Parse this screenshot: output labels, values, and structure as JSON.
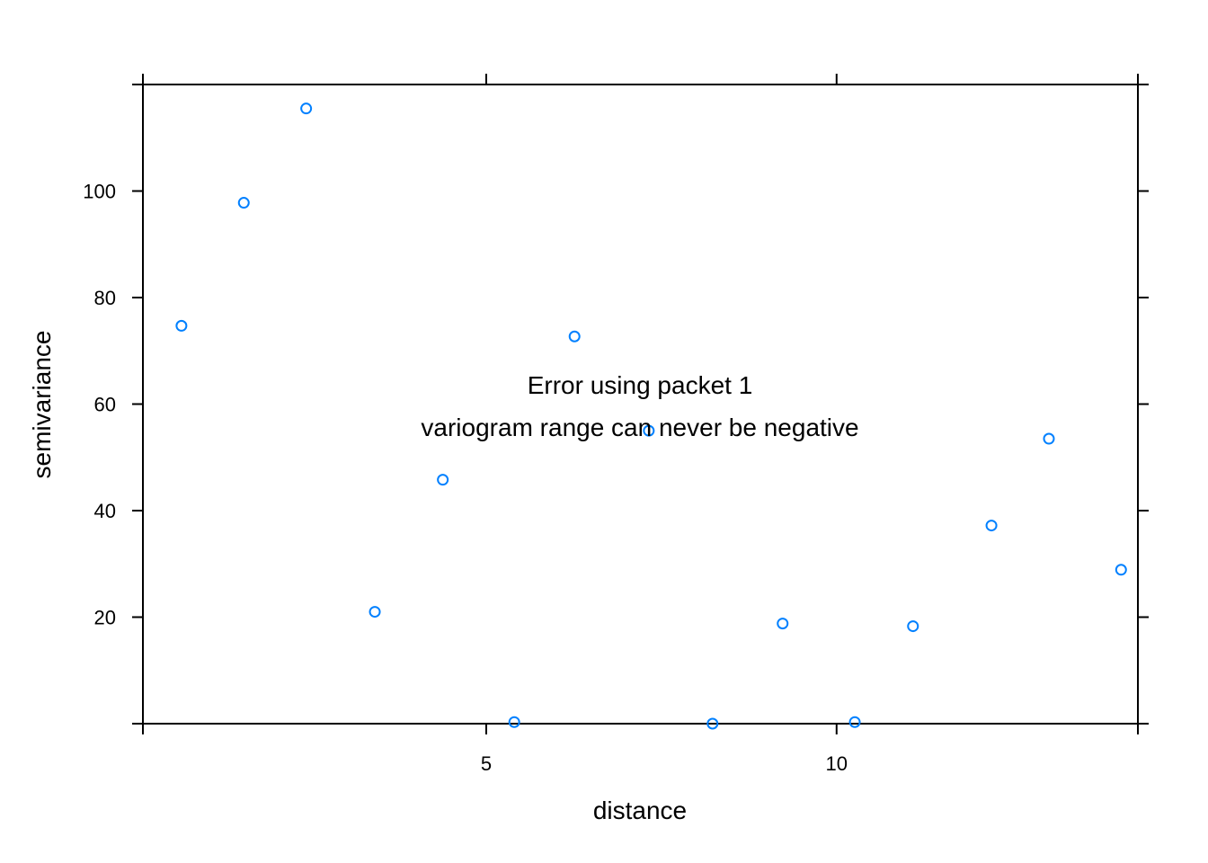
{
  "chart_data": {
    "type": "scatter",
    "title": "",
    "xlabel": "distance",
    "ylabel": "semivariance",
    "xlim": [
      0.1,
      14.3
    ],
    "ylim": [
      0,
      120
    ],
    "x_ticks": [
      5,
      10
    ],
    "y_ticks": [
      20,
      40,
      60,
      80,
      100
    ],
    "grid": false,
    "point_color": "#0080ff",
    "series": [
      {
        "points": [
          {
            "x": 0.65,
            "y": 74.7
          },
          {
            "x": 1.54,
            "y": 97.8
          },
          {
            "x": 2.43,
            "y": 115.5
          },
          {
            "x": 3.41,
            "y": 21.0
          },
          {
            "x": 4.38,
            "y": 45.8
          },
          {
            "x": 5.4,
            "y": 0.3
          },
          {
            "x": 6.26,
            "y": 72.7
          },
          {
            "x": 7.32,
            "y": 55.0
          },
          {
            "x": 8.23,
            "y": 0.0
          },
          {
            "x": 9.23,
            "y": 18.8
          },
          {
            "x": 10.26,
            "y": 0.3
          },
          {
            "x": 11.09,
            "y": 18.3
          },
          {
            "x": 12.21,
            "y": 37.2
          },
          {
            "x": 13.03,
            "y": 53.5
          },
          {
            "x": 14.06,
            "y": 28.9
          }
        ]
      }
    ],
    "annotations": [
      "Error using packet 1",
      "variogram range can never be negative"
    ]
  }
}
